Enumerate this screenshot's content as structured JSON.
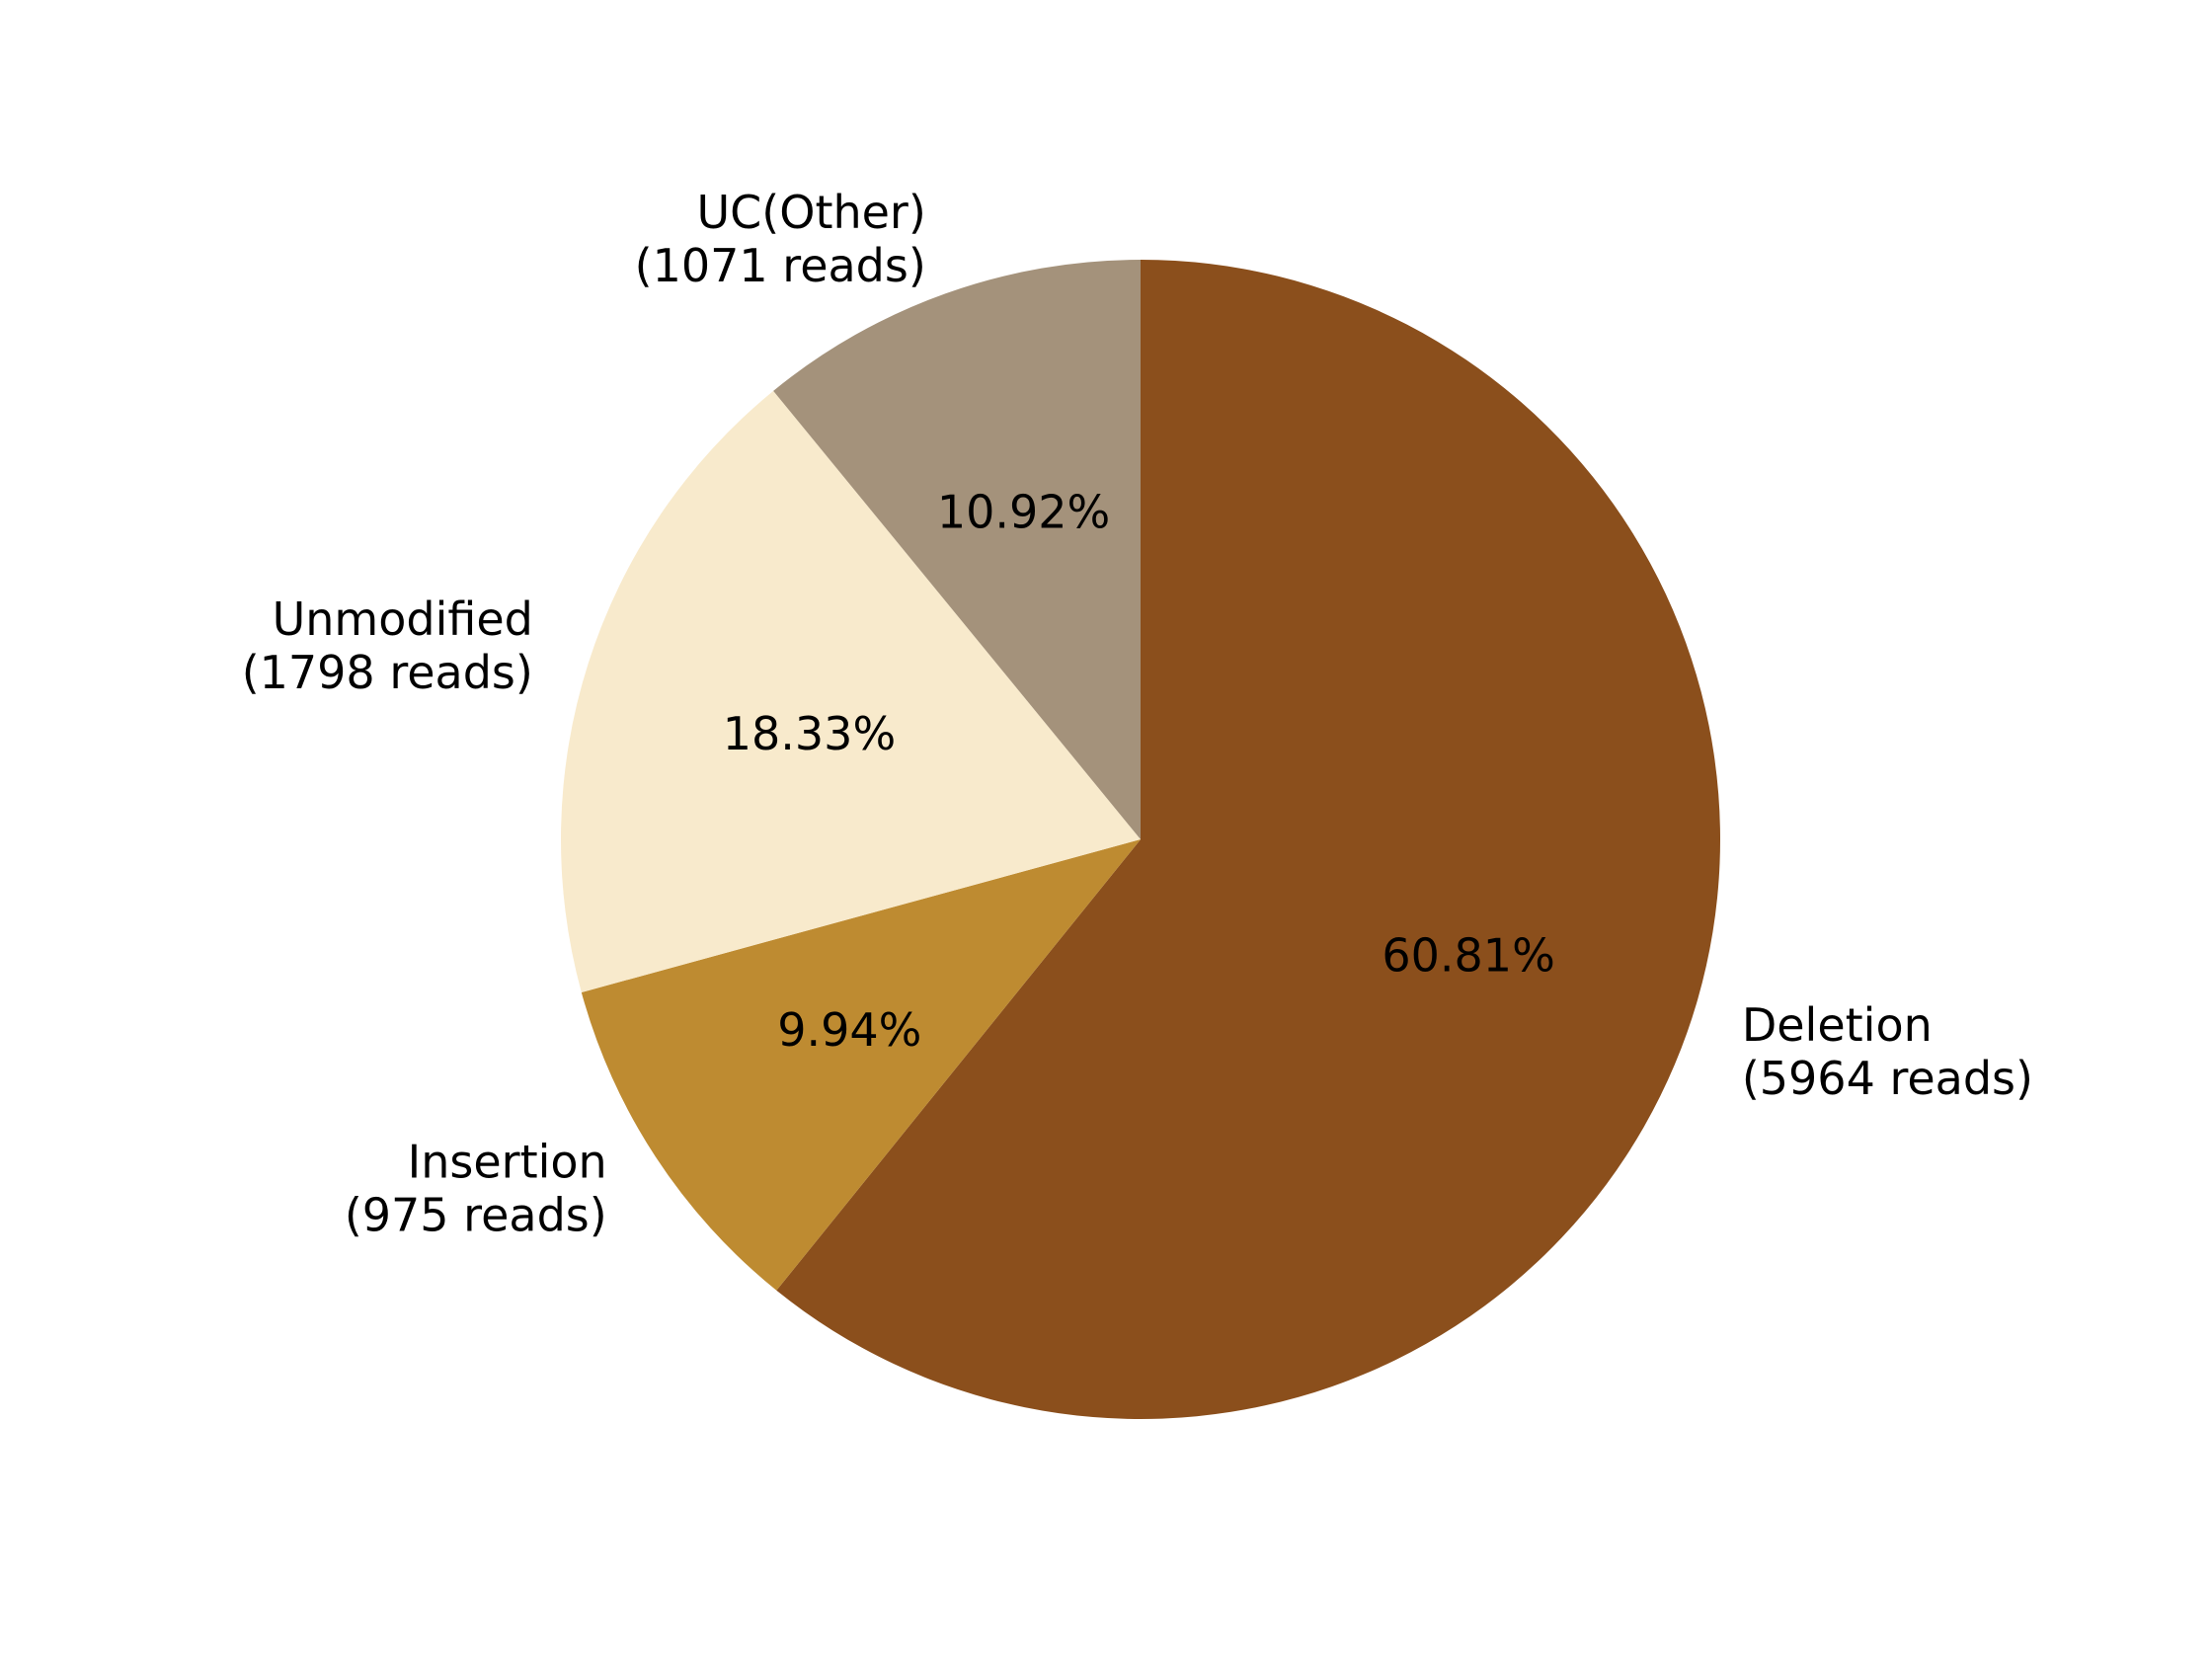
{
  "chart_data": {
    "type": "pie",
    "slices": [
      {
        "label_line1": "Deletion",
        "label_line2": "(5964 reads)",
        "reads": 5964,
        "percent_text": "60.81%",
        "color": "#8B4F1C"
      },
      {
        "label_line1": "Insertion",
        "label_line2": "(975 reads)",
        "reads": 975,
        "percent_text": "9.94%",
        "color": "#BE8B31"
      },
      {
        "label_line1": "Unmodified",
        "label_line2": "(1798 reads)",
        "reads": 1798,
        "percent_text": "18.33%",
        "color": "#F8EACC"
      },
      {
        "label_line1": "UC(Other)",
        "label_line2": "(1071 reads)",
        "reads": 1071,
        "percent_text": "10.92%",
        "color": "#A4927B"
      }
    ],
    "start_angle": "90°, clockwise",
    "legend": "none",
    "slice_labels": "outside",
    "percent_labels": "inside"
  }
}
